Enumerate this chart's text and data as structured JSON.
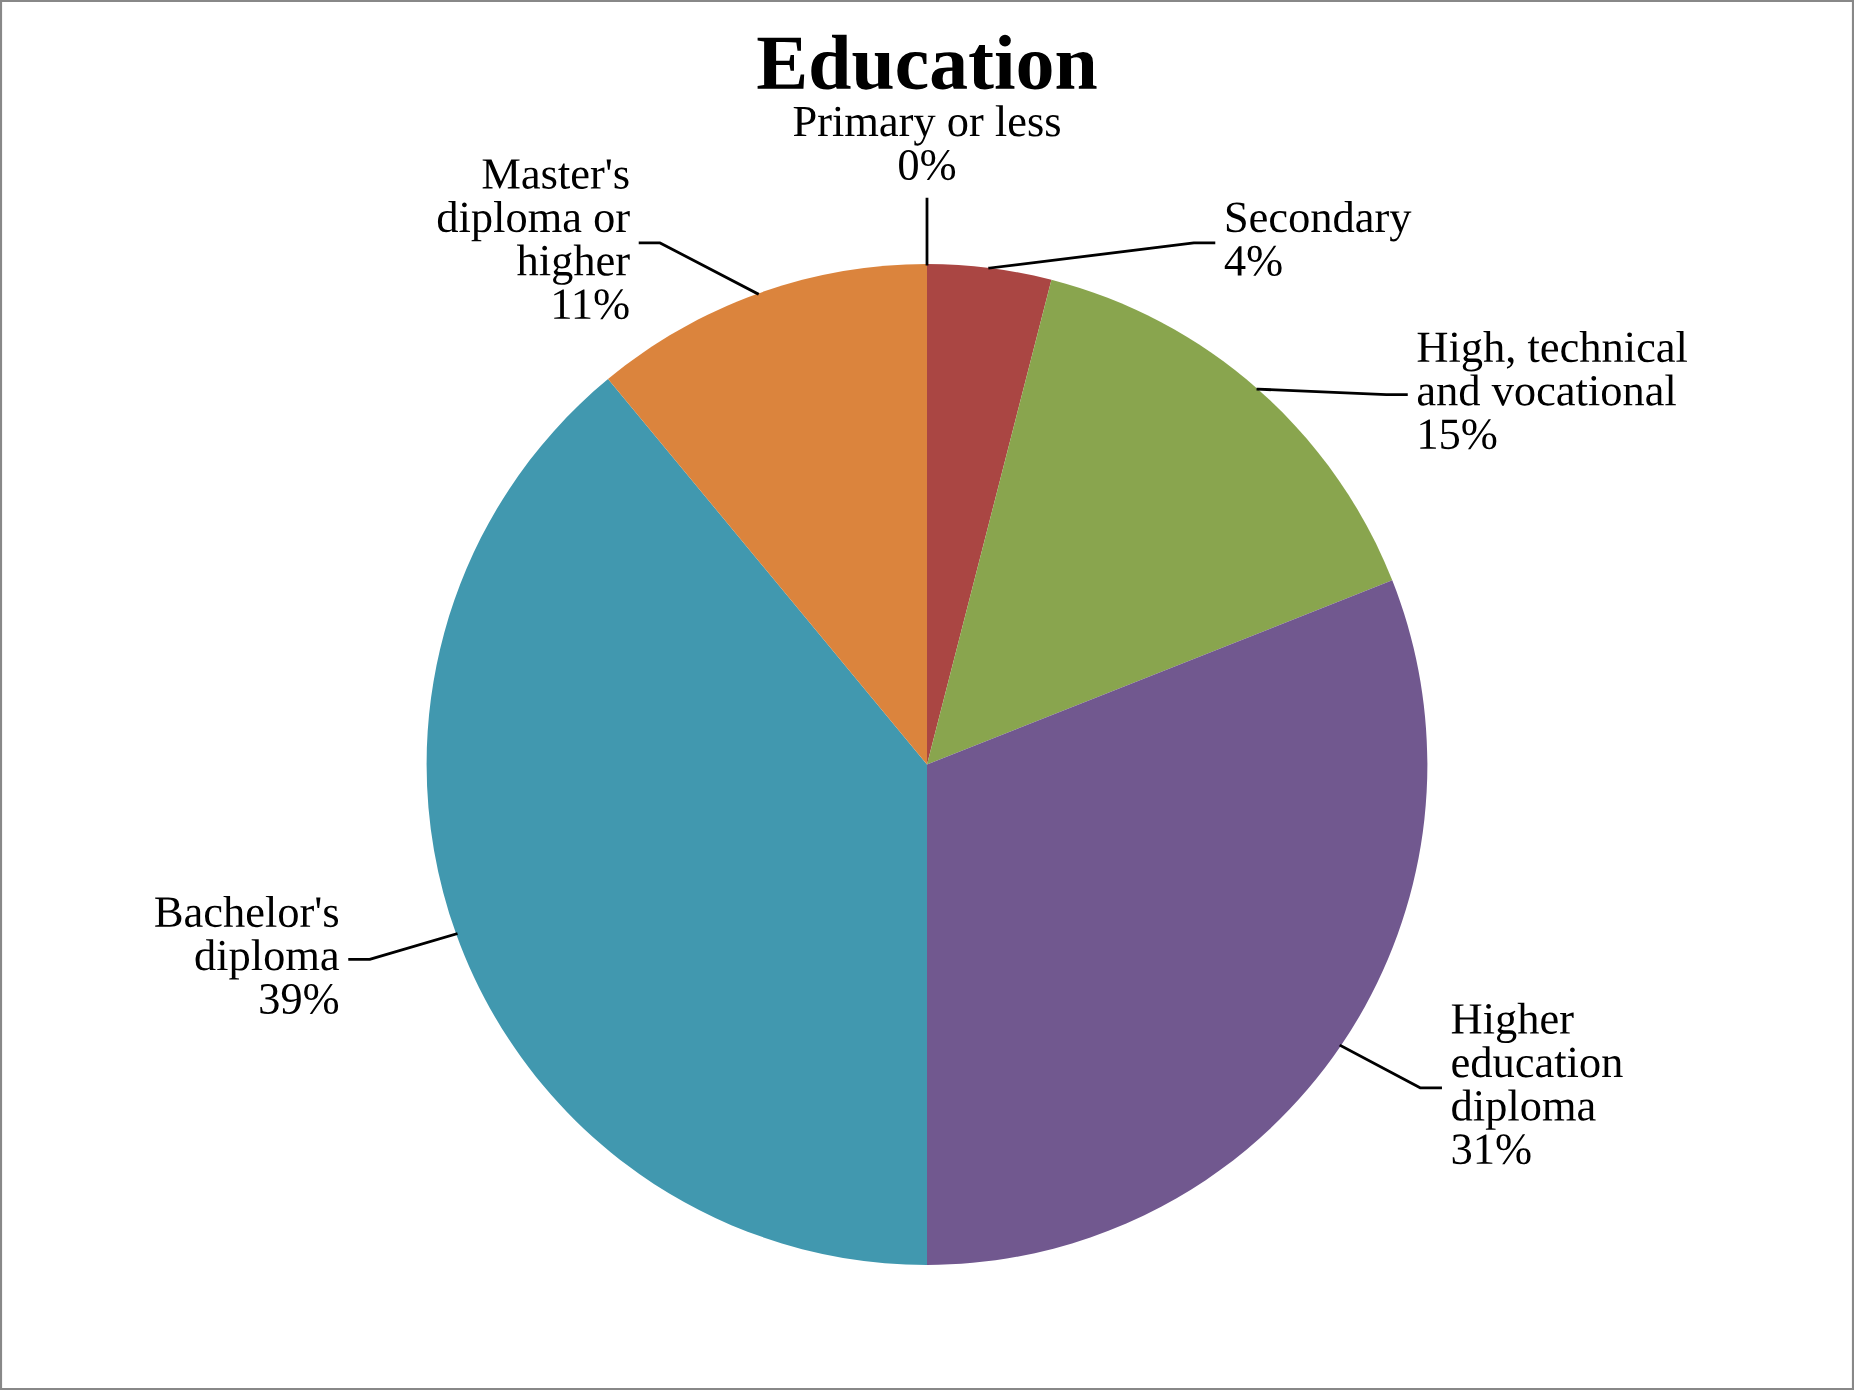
{
  "chart_data": {
    "type": "pie",
    "title": "Education",
    "categories": [
      "Primary or less",
      "Secondary",
      "High, technical\nand vocational",
      "Higher\neducation\ndiploma",
      "Bachelor's\ndiploma",
      "Master's\ndiploma or\nhigher"
    ],
    "values": [
      0,
      4,
      15,
      31,
      39,
      11
    ],
    "value_labels": [
      "0%",
      "4%",
      "15%",
      "31%",
      "39%",
      "11%"
    ],
    "colors": [
      "#4572a7",
      "#aa4643",
      "#89a54e",
      "#71588f",
      "#4198af",
      "#db843d"
    ],
    "legend": false
  }
}
